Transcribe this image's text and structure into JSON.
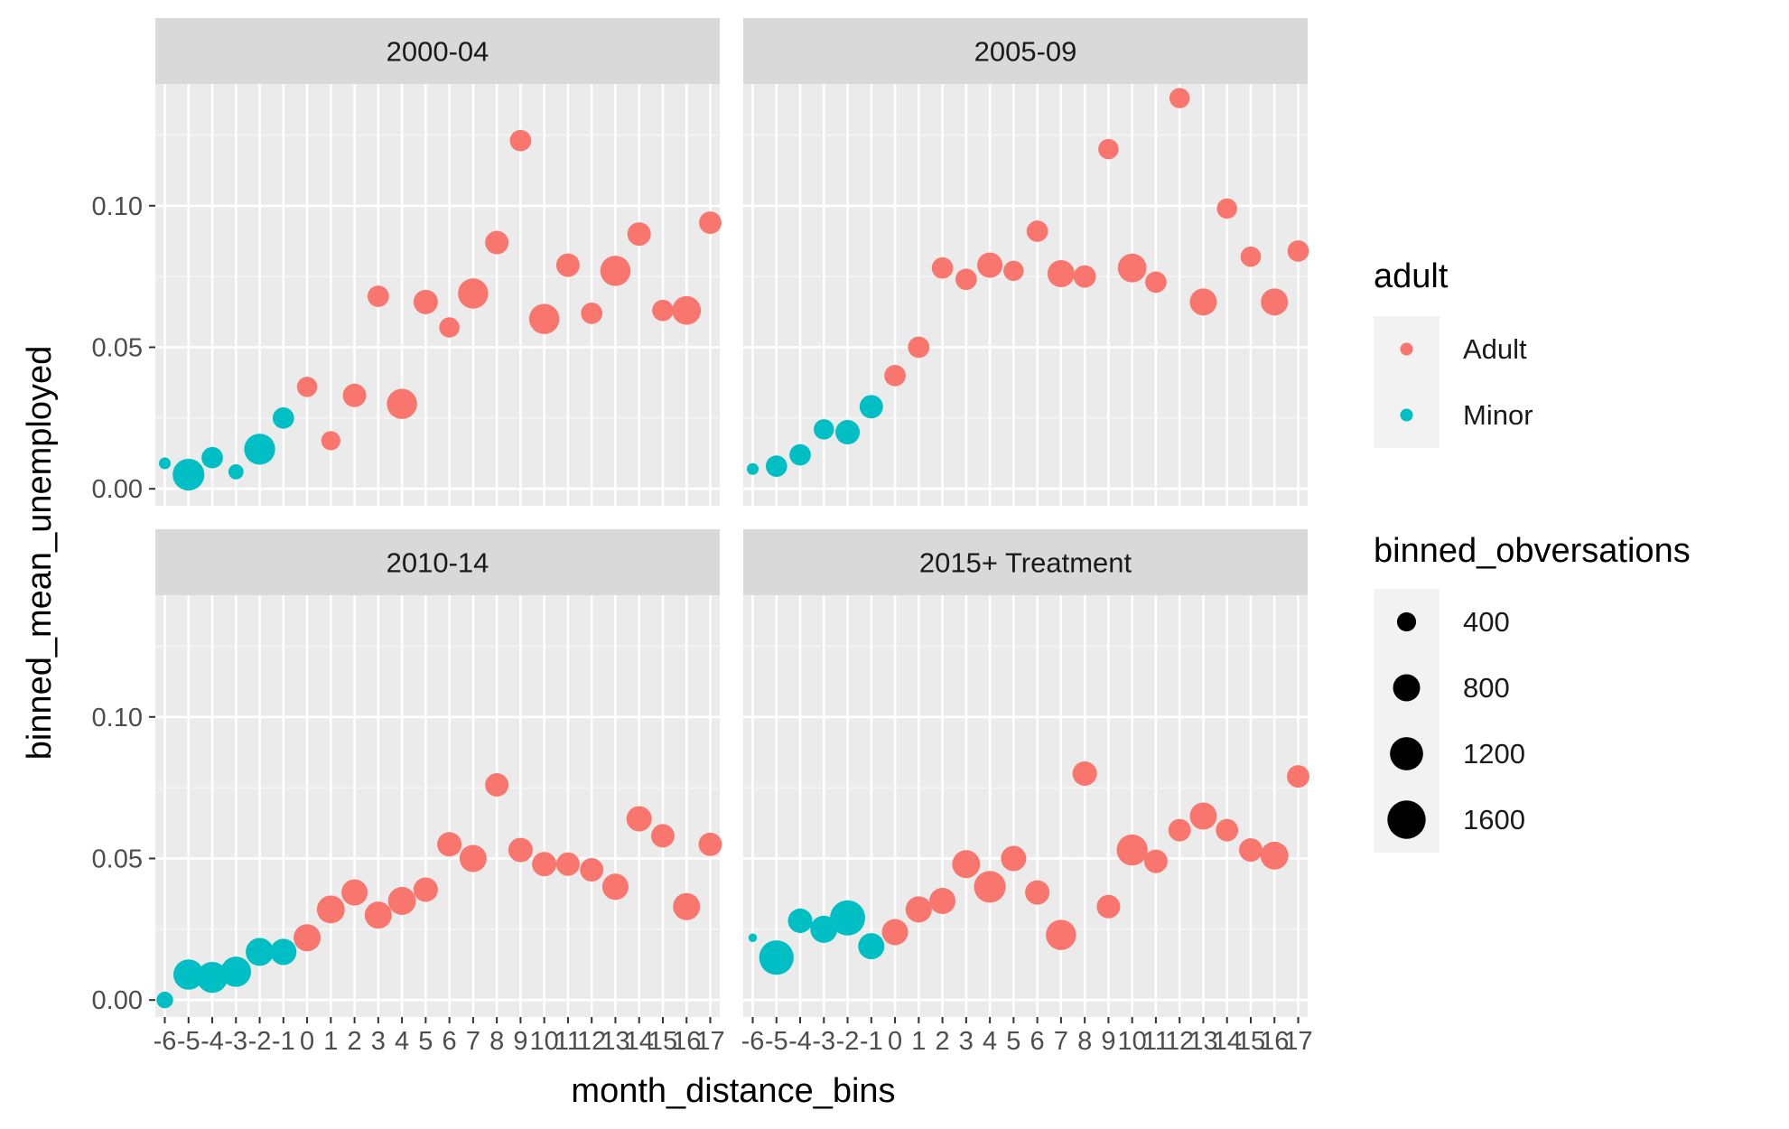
{
  "chart_data": {
    "type": "scatter",
    "xlabel": "month_distance_bins",
    "ylabel": "binned_mean_unemployed",
    "x_ticks": [
      -6,
      -5,
      -4,
      -3,
      -2,
      -1,
      0,
      1,
      2,
      3,
      4,
      5,
      6,
      7,
      8,
      9,
      10,
      11,
      12,
      13,
      14,
      15,
      16,
      17
    ],
    "x_range": [
      -6.4,
      17.4
    ],
    "y_ticks": [
      0.0,
      0.05,
      0.1
    ],
    "y_tick_labels": [
      "0.00",
      "0.05",
      "0.10"
    ],
    "y_range": [
      -0.006,
      0.143
    ],
    "grid": true,
    "legend_position": "right",
    "color_legend": {
      "title": "adult",
      "entries": [
        {
          "label": "Adult",
          "color": "#F8766D"
        },
        {
          "label": "Minor",
          "color": "#00BFC4"
        }
      ]
    },
    "size_legend": {
      "title": "binned_obversations",
      "entries": [
        {
          "label": "400",
          "value": 400
        },
        {
          "label": "800",
          "value": 800
        },
        {
          "label": "1200",
          "value": 1200
        },
        {
          "label": "1600",
          "value": 1600
        }
      ]
    },
    "panels": [
      {
        "title": "2000-04",
        "points": [
          {
            "x": -6,
            "y": 0.009,
            "n": 150,
            "group": "Minor"
          },
          {
            "x": -5,
            "y": 0.005,
            "n": 1100,
            "group": "Minor"
          },
          {
            "x": -4,
            "y": 0.011,
            "n": 500,
            "group": "Minor"
          },
          {
            "x": -3,
            "y": 0.006,
            "n": 250,
            "group": "Minor"
          },
          {
            "x": -2,
            "y": 0.014,
            "n": 1050,
            "group": "Minor"
          },
          {
            "x": -1,
            "y": 0.025,
            "n": 500,
            "group": "Minor"
          },
          {
            "x": 0,
            "y": 0.036,
            "n": 450,
            "group": "Adult"
          },
          {
            "x": 1,
            "y": 0.017,
            "n": 400,
            "group": "Adult"
          },
          {
            "x": 2,
            "y": 0.033,
            "n": 600,
            "group": "Adult"
          },
          {
            "x": 3,
            "y": 0.068,
            "n": 500,
            "group": "Adult"
          },
          {
            "x": 4,
            "y": 0.03,
            "n": 1000,
            "group": "Adult"
          },
          {
            "x": 5,
            "y": 0.066,
            "n": 650,
            "group": "Adult"
          },
          {
            "x": 6,
            "y": 0.057,
            "n": 450,
            "group": "Adult"
          },
          {
            "x": 7,
            "y": 0.069,
            "n": 1000,
            "group": "Adult"
          },
          {
            "x": 8,
            "y": 0.087,
            "n": 600,
            "group": "Adult"
          },
          {
            "x": 9,
            "y": 0.123,
            "n": 500,
            "group": "Adult"
          },
          {
            "x": 10,
            "y": 0.06,
            "n": 1000,
            "group": "Adult"
          },
          {
            "x": 11,
            "y": 0.079,
            "n": 600,
            "group": "Adult"
          },
          {
            "x": 12,
            "y": 0.062,
            "n": 500,
            "group": "Adult"
          },
          {
            "x": 13,
            "y": 0.077,
            "n": 1000,
            "group": "Adult"
          },
          {
            "x": 14,
            "y": 0.09,
            "n": 600,
            "group": "Adult"
          },
          {
            "x": 15,
            "y": 0.063,
            "n": 500,
            "group": "Adult"
          },
          {
            "x": 16,
            "y": 0.063,
            "n": 900,
            "group": "Adult"
          },
          {
            "x": 17,
            "y": 0.094,
            "n": 550,
            "group": "Adult"
          }
        ]
      },
      {
        "title": "2005-09",
        "points": [
          {
            "x": -6,
            "y": 0.007,
            "n": 150,
            "group": "Minor"
          },
          {
            "x": -5,
            "y": 0.008,
            "n": 500,
            "group": "Minor"
          },
          {
            "x": -4,
            "y": 0.012,
            "n": 500,
            "group": "Minor"
          },
          {
            "x": -3,
            "y": 0.021,
            "n": 450,
            "group": "Minor"
          },
          {
            "x": -2,
            "y": 0.02,
            "n": 650,
            "group": "Minor"
          },
          {
            "x": -1,
            "y": 0.029,
            "n": 600,
            "group": "Minor"
          },
          {
            "x": 0,
            "y": 0.04,
            "n": 500,
            "group": "Adult"
          },
          {
            "x": 1,
            "y": 0.05,
            "n": 500,
            "group": "Adult"
          },
          {
            "x": 2,
            "y": 0.078,
            "n": 500,
            "group": "Adult"
          },
          {
            "x": 3,
            "y": 0.074,
            "n": 500,
            "group": "Adult"
          },
          {
            "x": 4,
            "y": 0.079,
            "n": 700,
            "group": "Adult"
          },
          {
            "x": 5,
            "y": 0.077,
            "n": 450,
            "group": "Adult"
          },
          {
            "x": 6,
            "y": 0.091,
            "n": 500,
            "group": "Adult"
          },
          {
            "x": 7,
            "y": 0.076,
            "n": 800,
            "group": "Adult"
          },
          {
            "x": 8,
            "y": 0.075,
            "n": 550,
            "group": "Adult"
          },
          {
            "x": 9,
            "y": 0.12,
            "n": 450,
            "group": "Adult"
          },
          {
            "x": 10,
            "y": 0.078,
            "n": 900,
            "group": "Adult"
          },
          {
            "x": 11,
            "y": 0.073,
            "n": 500,
            "group": "Adult"
          },
          {
            "x": 12,
            "y": 0.138,
            "n": 450,
            "group": "Adult"
          },
          {
            "x": 13,
            "y": 0.066,
            "n": 800,
            "group": "Adult"
          },
          {
            "x": 14,
            "y": 0.099,
            "n": 450,
            "group": "Adult"
          },
          {
            "x": 15,
            "y": 0.082,
            "n": 450,
            "group": "Adult"
          },
          {
            "x": 16,
            "y": 0.066,
            "n": 800,
            "group": "Adult"
          },
          {
            "x": 17,
            "y": 0.084,
            "n": 500,
            "group": "Adult"
          }
        ]
      },
      {
        "title": "2010-14",
        "points": [
          {
            "x": -6,
            "y": 0.0,
            "n": 300,
            "group": "Minor"
          },
          {
            "x": -5,
            "y": 0.009,
            "n": 1000,
            "group": "Minor"
          },
          {
            "x": -4,
            "y": 0.008,
            "n": 1050,
            "group": "Minor"
          },
          {
            "x": -3,
            "y": 0.01,
            "n": 1000,
            "group": "Minor"
          },
          {
            "x": -2,
            "y": 0.017,
            "n": 850,
            "group": "Minor"
          },
          {
            "x": -1,
            "y": 0.017,
            "n": 750,
            "group": "Minor"
          },
          {
            "x": 0,
            "y": 0.022,
            "n": 800,
            "group": "Adult"
          },
          {
            "x": 1,
            "y": 0.032,
            "n": 850,
            "group": "Adult"
          },
          {
            "x": 2,
            "y": 0.038,
            "n": 750,
            "group": "Adult"
          },
          {
            "x": 3,
            "y": 0.03,
            "n": 800,
            "group": "Adult"
          },
          {
            "x": 4,
            "y": 0.035,
            "n": 850,
            "group": "Adult"
          },
          {
            "x": 5,
            "y": 0.039,
            "n": 650,
            "group": "Adult"
          },
          {
            "x": 6,
            "y": 0.055,
            "n": 650,
            "group": "Adult"
          },
          {
            "x": 7,
            "y": 0.05,
            "n": 800,
            "group": "Adult"
          },
          {
            "x": 8,
            "y": 0.076,
            "n": 600,
            "group": "Adult"
          },
          {
            "x": 9,
            "y": 0.053,
            "n": 650,
            "group": "Adult"
          },
          {
            "x": 10,
            "y": 0.048,
            "n": 650,
            "group": "Adult"
          },
          {
            "x": 11,
            "y": 0.048,
            "n": 600,
            "group": "Adult"
          },
          {
            "x": 12,
            "y": 0.046,
            "n": 600,
            "group": "Adult"
          },
          {
            "x": 13,
            "y": 0.04,
            "n": 750,
            "group": "Adult"
          },
          {
            "x": 14,
            "y": 0.064,
            "n": 700,
            "group": "Adult"
          },
          {
            "x": 15,
            "y": 0.058,
            "n": 600,
            "group": "Adult"
          },
          {
            "x": 16,
            "y": 0.033,
            "n": 800,
            "group": "Adult"
          },
          {
            "x": 17,
            "y": 0.055,
            "n": 600,
            "group": "Adult"
          }
        ]
      },
      {
        "title": "2015+ Treatment",
        "points": [
          {
            "x": -6,
            "y": 0.022,
            "n": 80,
            "group": "Minor"
          },
          {
            "x": -5,
            "y": 0.015,
            "n": 1300,
            "group": "Minor"
          },
          {
            "x": -4,
            "y": 0.028,
            "n": 650,
            "group": "Minor"
          },
          {
            "x": -3,
            "y": 0.025,
            "n": 800,
            "group": "Minor"
          },
          {
            "x": -2,
            "y": 0.029,
            "n": 1350,
            "group": "Minor"
          },
          {
            "x": -1,
            "y": 0.019,
            "n": 750,
            "group": "Minor"
          },
          {
            "x": 0,
            "y": 0.024,
            "n": 750,
            "group": "Adult"
          },
          {
            "x": 1,
            "y": 0.032,
            "n": 750,
            "group": "Adult"
          },
          {
            "x": 2,
            "y": 0.035,
            "n": 750,
            "group": "Adult"
          },
          {
            "x": 3,
            "y": 0.048,
            "n": 850,
            "group": "Adult"
          },
          {
            "x": 4,
            "y": 0.04,
            "n": 1100,
            "group": "Adult"
          },
          {
            "x": 5,
            "y": 0.05,
            "n": 700,
            "group": "Adult"
          },
          {
            "x": 6,
            "y": 0.038,
            "n": 650,
            "group": "Adult"
          },
          {
            "x": 7,
            "y": 0.023,
            "n": 1000,
            "group": "Adult"
          },
          {
            "x": 8,
            "y": 0.08,
            "n": 650,
            "group": "Adult"
          },
          {
            "x": 9,
            "y": 0.033,
            "n": 600,
            "group": "Adult"
          },
          {
            "x": 10,
            "y": 0.053,
            "n": 1050,
            "group": "Adult"
          },
          {
            "x": 11,
            "y": 0.049,
            "n": 600,
            "group": "Adult"
          },
          {
            "x": 12,
            "y": 0.06,
            "n": 550,
            "group": "Adult"
          },
          {
            "x": 13,
            "y": 0.065,
            "n": 800,
            "group": "Adult"
          },
          {
            "x": 14,
            "y": 0.06,
            "n": 550,
            "group": "Adult"
          },
          {
            "x": 15,
            "y": 0.053,
            "n": 600,
            "group": "Adult"
          },
          {
            "x": 16,
            "y": 0.051,
            "n": 850,
            "group": "Adult"
          },
          {
            "x": 17,
            "y": 0.079,
            "n": 550,
            "group": "Adult"
          }
        ]
      }
    ]
  }
}
